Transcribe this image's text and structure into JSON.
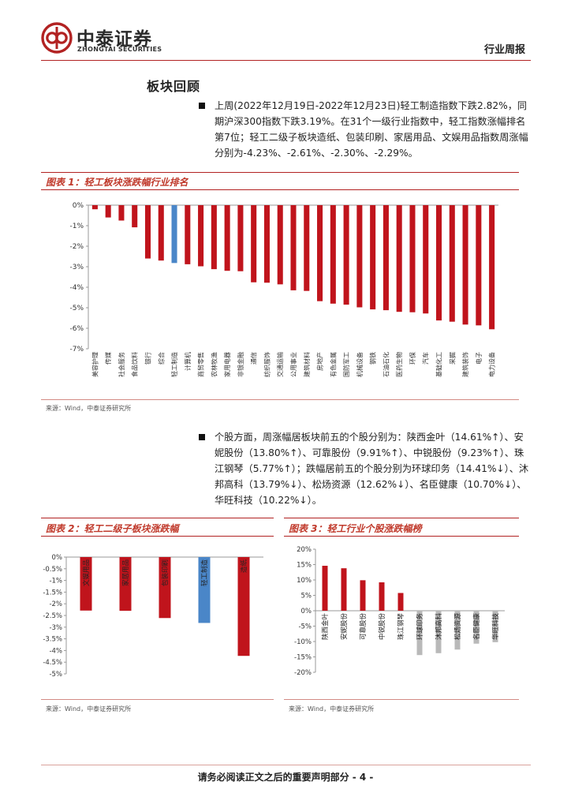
{
  "header": {
    "brand_cn": "中泰证券",
    "brand_en": "ZHONGTAI SECURITIES",
    "report_type": "行业周报"
  },
  "section_title": "板块回顾",
  "paragraph1": "上周(2022年12月19日-2022年12月23日)轻工制造指数下跌2.82%，同期沪深300指数下跌3.19%。在31个一级行业指数中，轻工指数涨幅排名第7位；轻工二级子板块造纸、包装印刷、家居用品、文娱用品指数周涨幅分别为-4.23%、-2.61%、-2.30%、-2.29%。",
  "paragraph2": "个股方面，周涨幅居板块前五的个股分别为：陕西金叶（14.61%↑）、安妮股份（13.80%↑）、可靠股份（9.91%↑）、中锐股份（9.23%↑）、珠江钢琴（5.77%↑）；跌幅居前五的个股分别为环球印务（14.41%↓）、沐邦高科（13.79%↓）、松炀资源（12.62%↓）、名臣健康（10.70%↓）、华旺科技（10.22%↓）。",
  "colors": {
    "red": "#c0141c",
    "blue": "#4a86c8",
    "gray": "#b9b9b9",
    "accent": "#b22222"
  },
  "figure1": {
    "title": "图表 1：轻工板块涨跌幅行业排名",
    "source": "来源：Wind，中泰证券研究所",
    "chart_data": {
      "type": "bar",
      "ylim": [
        -7,
        0
      ],
      "yticks": [
        "0%",
        "-1%",
        "-2%",
        "-3%",
        "-4%",
        "-5%",
        "-6%",
        "-7%"
      ],
      "highlight": "轻工制造",
      "categories": [
        "美容护理",
        "传媒",
        "社会服务",
        "食品饮料",
        "银行",
        "综合",
        "轻工制造",
        "计算机",
        "商贸零售",
        "农林牧渔",
        "家用电器",
        "非银金融",
        "通信",
        "纺织服饰",
        "交通运输",
        "公用事业",
        "建筑材料",
        "房地产",
        "有色金属",
        "国防军工",
        "机械设备",
        "钢铁",
        "石油石化",
        "医药生物",
        "环保",
        "汽车",
        "基础化工",
        "采掘",
        "建筑装饰",
        "电子",
        "电力设备"
      ],
      "values": [
        -0.2,
        -0.6,
        -0.75,
        -1.08,
        -2.6,
        -2.7,
        -2.82,
        -2.88,
        -2.98,
        -3.12,
        -3.2,
        -3.22,
        -3.76,
        -3.78,
        -3.86,
        -4.15,
        -4.18,
        -4.68,
        -4.8,
        -4.85,
        -4.98,
        -5.08,
        -5.12,
        -5.2,
        -5.22,
        -5.28,
        -5.62,
        -5.68,
        -5.82,
        -5.86,
        -6.05
      ]
    }
  },
  "figure2": {
    "title": "图表 2：轻工二级子板块涨跌幅",
    "source": "来源：Wind，中泰证券研究所",
    "chart_data": {
      "type": "bar",
      "ylim": [
        -5,
        0
      ],
      "yticks": [
        "0%",
        "-0.5%",
        "-1%",
        "-1.5%",
        "-2%",
        "-2.5%",
        "-3%",
        "-3.5%",
        "-4%",
        "-4.5%",
        "-5%"
      ],
      "highlight": "轻工制造",
      "categories": [
        "文娱用品",
        "家居用品",
        "包装印刷",
        "轻工制造",
        "造纸"
      ],
      "values": [
        -2.29,
        -2.3,
        -2.61,
        -2.82,
        -4.23
      ]
    }
  },
  "figure3": {
    "title": "图表 3：轻工行业个股涨跌幅榜",
    "source": "来源：Wind，中泰证券研究所",
    "chart_data": {
      "type": "bar",
      "ylim": [
        -20,
        20
      ],
      "yticks": [
        "20%",
        "15%",
        "10%",
        "5%",
        "0%",
        "-5%",
        "-10%",
        "-15%",
        "-20%"
      ],
      "categories": [
        "陕西金叶",
        "安妮股份",
        "可靠股份",
        "中锐股份",
        "珠江钢琴",
        "环球印务",
        "沐邦高科",
        "松炀资源",
        "名臣健康",
        "华旺科技"
      ],
      "values": [
        14.61,
        13.8,
        9.91,
        9.23,
        5.77,
        -14.41,
        -13.79,
        -12.62,
        -10.7,
        -10.22
      ]
    }
  },
  "footer": "请务必阅读正文之后的重要声明部分 - 4 -"
}
